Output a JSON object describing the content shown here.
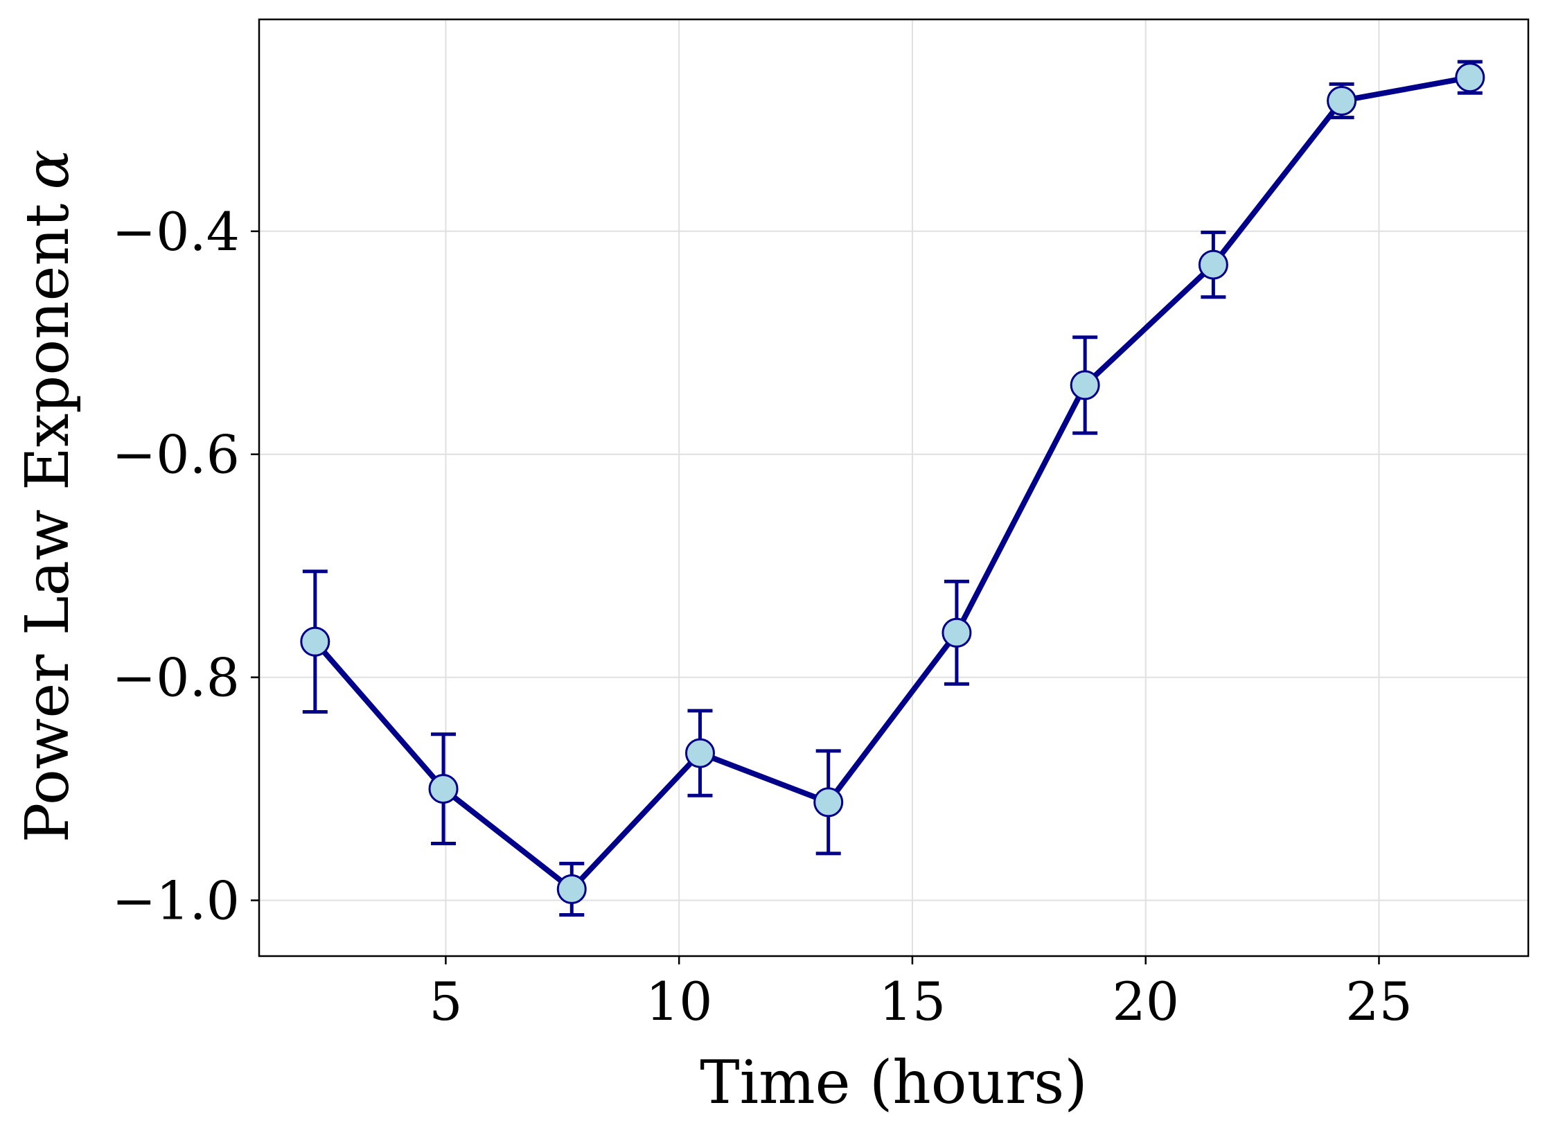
{
  "chart_data": {
    "type": "line",
    "title": "",
    "xlabel": "Time (hours)",
    "ylabel": "Power Law Exponent",
    "ylabel_symbol": "α",
    "xlim": [
      1,
      28.2
    ],
    "ylim": [
      -1.05,
      -0.21
    ],
    "xticks": [
      5,
      10,
      15,
      20,
      25
    ],
    "xtick_labels": [
      "5",
      "10",
      "15",
      "20",
      "25"
    ],
    "yticks": [
      -1.0,
      -0.8,
      -0.6,
      -0.4
    ],
    "ytick_labels": [
      "−1.0",
      "−0.8",
      "−0.6",
      "−0.4"
    ],
    "grid": true,
    "legend": "none",
    "colors": {
      "line": "#00008b",
      "marker_fill": "#add8e6",
      "marker_edge": "#00008b",
      "grid": "#e0e0e0",
      "axes": "#000000"
    },
    "series": [
      {
        "x": [
          2.2,
          4.95,
          7.7,
          10.45,
          13.2,
          15.95,
          18.7,
          21.45,
          24.2,
          26.95
        ],
        "y": [
          -0.768,
          -0.9,
          -0.99,
          -0.868,
          -0.912,
          -0.76,
          -0.538,
          -0.43,
          -0.283,
          -0.262
        ],
        "yerr": [
          0.063,
          0.049,
          0.023,
          0.038,
          0.046,
          0.046,
          0.043,
          0.029,
          0.015,
          0.014
        ]
      }
    ]
  }
}
